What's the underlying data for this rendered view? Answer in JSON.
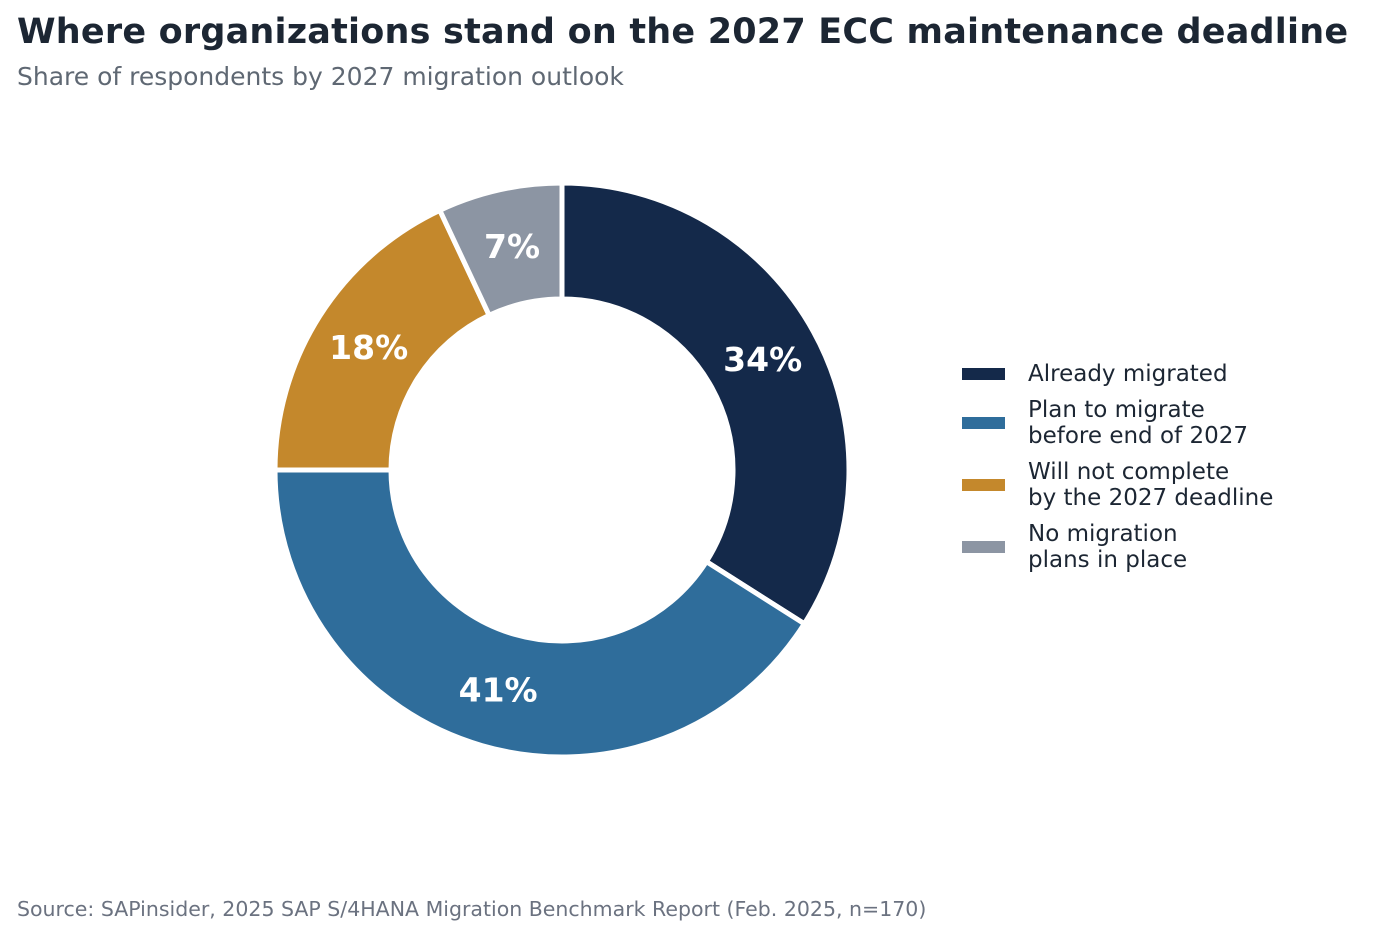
{
  "title": "Where organizations stand on the 2027 ECC maintenance deadline",
  "subtitle": "Share of respondents by 2027 migration outlook",
  "source": "Source: SAPinsider, 2025 SAP S/4HANA Migration Benchmark Report (Feb. 2025, n=170)",
  "chart_data": {
    "type": "pie",
    "donut": true,
    "start": "12 o'clock",
    "direction": "clockwise",
    "legend_position": "right",
    "slices": [
      {
        "label": "Already migrated",
        "value": 34,
        "display": "34%",
        "color": "#14294a"
      },
      {
        "label": "Plan to migrate\nbefore end of 2027",
        "value": 41,
        "display": "41%",
        "color": "#2f6d9b"
      },
      {
        "label": "Will not complete\nby the 2027 deadline",
        "value": 18,
        "display": "18%",
        "color": "#c4882c"
      },
      {
        "label": "No migration\nplans in place",
        "value": 7,
        "display": "7%",
        "color": "#8c95a3"
      }
    ]
  }
}
